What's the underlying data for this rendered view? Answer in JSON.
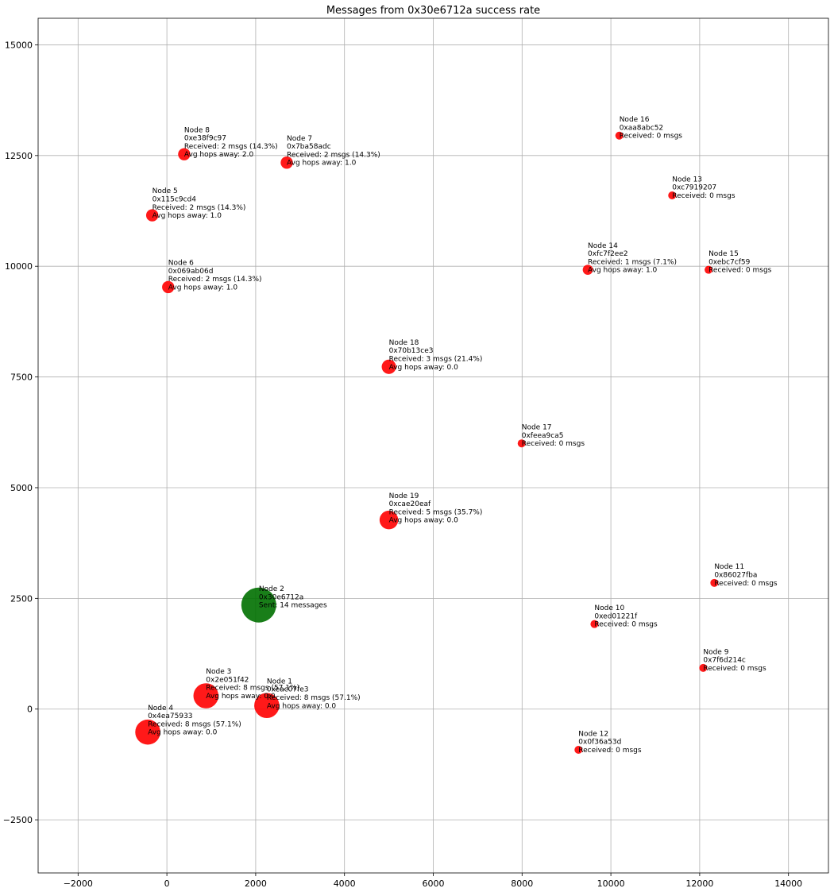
{
  "chart_data": {
    "type": "scatter",
    "title": "Messages from 0x30e6712a success rate",
    "xlabel": "",
    "ylabel": "",
    "xlim": [
      -2900,
      14900
    ],
    "ylim": [
      -3700,
      15600
    ],
    "xticks": [
      -2000,
      0,
      2000,
      4000,
      6000,
      8000,
      10000,
      12000,
      14000
    ],
    "yticks": [
      -2500,
      0,
      2500,
      5000,
      7500,
      10000,
      12500,
      15000
    ],
    "grid": true,
    "colors": {
      "sender": "#007000",
      "receiver": "#ff0000"
    },
    "points": [
      {
        "node": "Node 1",
        "id": "0xeac07fe3",
        "x": 2250,
        "y": 80,
        "received": 8,
        "kind": "receiver",
        "lines": [
          "Node 1",
          "0xeac07fe3",
          "Received: 8 msgs (57.1%)",
          "Avg hops away: 0.0"
        ]
      },
      {
        "node": "Node 2",
        "id": "0x30e6712a",
        "x": 2070,
        "y": 2350,
        "sent": 14,
        "kind": "sender",
        "lines": [
          "Node 2",
          "0x30e6712a",
          "Sent: 14 messages"
        ]
      },
      {
        "node": "Node 3",
        "id": "0x2e051f42",
        "x": 880,
        "y": 300,
        "received": 8,
        "kind": "receiver",
        "lines": [
          "Node 3",
          "0x2e051f42",
          "Received: 8 msgs (57.1%)",
          "Avg hops away: 0.0"
        ]
      },
      {
        "node": "Node 4",
        "id": "0x4ea75933",
        "x": -430,
        "y": -520,
        "received": 8,
        "kind": "receiver",
        "lines": [
          "Node 4",
          "0x4ea75933",
          "Received: 8 msgs (57.1%)",
          "Avg hops away: 0.0"
        ]
      },
      {
        "node": "Node 5",
        "id": "0x115c9cd4",
        "x": -330,
        "y": 11150,
        "received": 2,
        "kind": "receiver",
        "lines": [
          "Node 5",
          "0x115c9cd4",
          "Received: 2 msgs (14.3%)",
          "Avg hops away: 1.0"
        ]
      },
      {
        "node": "Node 6",
        "id": "0x069ab06d",
        "x": 30,
        "y": 9530,
        "received": 2,
        "kind": "receiver",
        "lines": [
          "Node 6",
          "0x069ab06d",
          "Received: 2 msgs (14.3%)",
          "Avg hops away: 1.0"
        ]
      },
      {
        "node": "Node 7",
        "id": "0x7ba58adc",
        "x": 2700,
        "y": 12340,
        "received": 2,
        "kind": "receiver",
        "lines": [
          "Node 7",
          "0x7ba58adc",
          "Received: 2 msgs (14.3%)",
          "Avg hops away: 1.0"
        ]
      },
      {
        "node": "Node 8",
        "id": "0xe38f9c97",
        "x": 390,
        "y": 12530,
        "received": 2,
        "kind": "receiver",
        "lines": [
          "Node 8",
          "0xe38f9c97",
          "Received: 2 msgs (14.3%)",
          "Avg hops away: 2.0"
        ]
      },
      {
        "node": "Node 9",
        "id": "0x7f6d214c",
        "x": 12080,
        "y": 930,
        "received": 0,
        "kind": "receiver",
        "lines": [
          "Node 9",
          "0x7f6d214c",
          "Received: 0 msgs"
        ]
      },
      {
        "node": "Node 10",
        "id": "0xed01221f",
        "x": 9630,
        "y": 1920,
        "received": 0,
        "kind": "receiver",
        "lines": [
          "Node 10",
          "0xed01221f",
          "Received: 0 msgs"
        ]
      },
      {
        "node": "Node 11",
        "id": "0x86027fba",
        "x": 12330,
        "y": 2850,
        "received": 0,
        "kind": "receiver",
        "lines": [
          "Node 11",
          "0x86027fba",
          "Received: 0 msgs"
        ]
      },
      {
        "node": "Node 12",
        "id": "0x0f36a53d",
        "x": 9270,
        "y": -920,
        "received": 0,
        "kind": "receiver",
        "lines": [
          "Node 12",
          "0x0f36a53d",
          "Received: 0 msgs"
        ]
      },
      {
        "node": "Node 13",
        "id": "0xc7919207",
        "x": 11380,
        "y": 11600,
        "received": 0,
        "kind": "receiver",
        "lines": [
          "Node 13",
          "0xc7919207",
          "Received: 0 msgs"
        ]
      },
      {
        "node": "Node 14",
        "id": "0xfc7f2ee2",
        "x": 9480,
        "y": 9920,
        "received": 1,
        "kind": "receiver",
        "lines": [
          "Node 14",
          "0xfc7f2ee2",
          "Received: 1 msgs (7.1%)",
          "Avg hops away: 1.0"
        ]
      },
      {
        "node": "Node 15",
        "id": "0xebc7cf59",
        "x": 12200,
        "y": 9920,
        "received": 0,
        "kind": "receiver",
        "lines": [
          "Node 15",
          "0xebc7cf59",
          "Received: 0 msgs"
        ]
      },
      {
        "node": "Node 16",
        "id": "0xaa8abc52",
        "x": 10190,
        "y": 12950,
        "received": 0,
        "kind": "receiver",
        "lines": [
          "Node 16",
          "0xaa8abc52",
          "Received: 0 msgs"
        ]
      },
      {
        "node": "Node 17",
        "id": "0xfeea9ca5",
        "x": 7990,
        "y": 6000,
        "received": 0,
        "kind": "receiver",
        "lines": [
          "Node 17",
          "0xfeea9ca5",
          "Received: 0 msgs"
        ]
      },
      {
        "node": "Node 18",
        "id": "0x70b13ce3",
        "x": 5000,
        "y": 7730,
        "received": 3,
        "kind": "receiver",
        "lines": [
          "Node 18",
          "0x70b13ce3",
          "Received: 3 msgs (21.4%)",
          "Avg hops away: 0.0"
        ]
      },
      {
        "node": "Node 19",
        "id": "0xcae20eaf",
        "x": 5000,
        "y": 4270,
        "received": 5,
        "kind": "receiver",
        "lines": [
          "Node 19",
          "0xcae20eaf",
          "Received: 5 msgs (35.7%)",
          "Avg hops away: 0.0"
        ]
      }
    ]
  }
}
